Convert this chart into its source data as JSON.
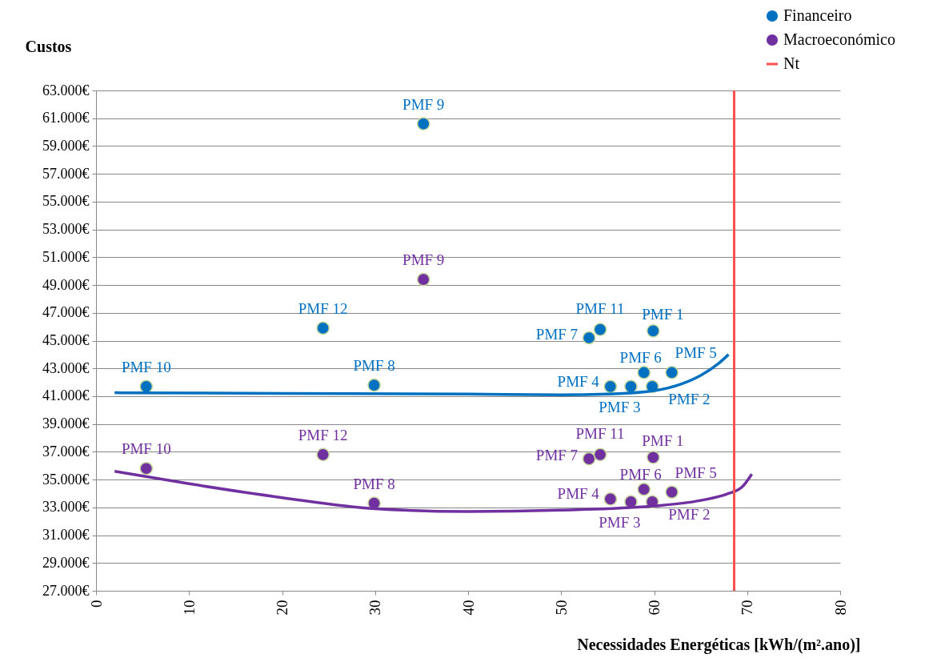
{
  "chart_data": {
    "type": "scatter",
    "xlabel": "Necessidades Energéticas [kWh/(m².ano)]",
    "ylabel": "Custos",
    "xlim": [
      0,
      80
    ],
    "xticks": [
      0,
      10,
      20,
      30,
      40,
      50,
      60,
      70,
      80
    ],
    "ylim": [
      27000,
      63000
    ],
    "yticks": [
      {
        "value": 27000,
        "label": "27.000€"
      },
      {
        "value": 29000,
        "label": "29.000€"
      },
      {
        "value": 31000,
        "label": "31.000€"
      },
      {
        "value": 33000,
        "label": "33.000€"
      },
      {
        "value": 35000,
        "label": "35.000€"
      },
      {
        "value": 37000,
        "label": "37.000€"
      },
      {
        "value": 39000,
        "label": "39.000€"
      },
      {
        "value": 41000,
        "label": "41.000€"
      },
      {
        "value": 43000,
        "label": "43.000€"
      },
      {
        "value": 45000,
        "label": "45.000€"
      },
      {
        "value": 47000,
        "label": "47.000€"
      },
      {
        "value": 49000,
        "label": "49.000€"
      },
      {
        "value": 51000,
        "label": "51.000€"
      },
      {
        "value": 53000,
        "label": "53.000€"
      },
      {
        "value": 55000,
        "label": "55.000€"
      },
      {
        "value": 57000,
        "label": "57.000€"
      },
      {
        "value": 59000,
        "label": "59.000€"
      },
      {
        "value": 61000,
        "label": "61.000€"
      },
      {
        "value": 63000,
        "label": "63.000€"
      }
    ],
    "grid": "y",
    "legend": "top right",
    "series": [
      {
        "name": "Financeiro",
        "color": "#0070c0",
        "marker": "circle",
        "x": [
          59.9,
          59.8,
          57.5,
          55.3,
          61.9,
          58.9,
          53.0,
          29.9,
          35.2,
          5.4,
          54.2,
          24.4
        ],
        "values": [
          45700,
          41700,
          41700,
          41700,
          42700,
          42700,
          45200,
          41800,
          60600,
          41700,
          45800,
          45900
        ],
        "value_labels": [
          "PMF 1",
          "PMF 2",
          "PMF 3",
          "PMF 4",
          "PMF 5",
          "PMF 6",
          "PMF 7",
          "PMF 8",
          "PMF 9",
          "PMF 10",
          "PMF 11",
          "PMF 12"
        ]
      },
      {
        "name": "Macroeconómico",
        "color": "#7030a0",
        "marker": "circle",
        "x": [
          59.9,
          59.8,
          57.5,
          55.3,
          61.9,
          58.9,
          53.0,
          29.9,
          35.2,
          5.4,
          54.2,
          24.4
        ],
        "values": [
          36600,
          33400,
          33400,
          33600,
          34100,
          34300,
          36500,
          33300,
          49400,
          35800,
          36800,
          36800
        ],
        "value_labels": [
          "PMF 1",
          "PMF 2",
          "PMF 3",
          "PMF 4",
          "PMF 5",
          "PMF 6",
          "PMF 7",
          "PMF 8",
          "PMF 9",
          "PMF 10",
          "PMF 11",
          "PMF 12"
        ]
      },
      {
        "color": "#0070c0",
        "type": "line",
        "line_style": "solid",
        "x": [
          2,
          20,
          40,
          50,
          55,
          60,
          63,
          65,
          67,
          68
        ],
        "values": [
          41250,
          41200,
          41150,
          41100,
          41150,
          41400,
          41900,
          42500,
          43400,
          44000
        ]
      },
      {
        "color": "#7030a0",
        "type": "line",
        "line_style": "solid",
        "x": [
          2,
          10,
          20,
          30,
          40,
          50,
          60,
          65,
          68,
          69.5,
          70.5
        ],
        "values": [
          35600,
          34700,
          33700,
          32900,
          32700,
          32800,
          33100,
          33500,
          34000,
          34500,
          35400
        ]
      }
    ],
    "ref_lines": [
      {
        "axis": "x",
        "value": 68.6,
        "label": "Nt",
        "color": "#ff5050"
      }
    ]
  }
}
